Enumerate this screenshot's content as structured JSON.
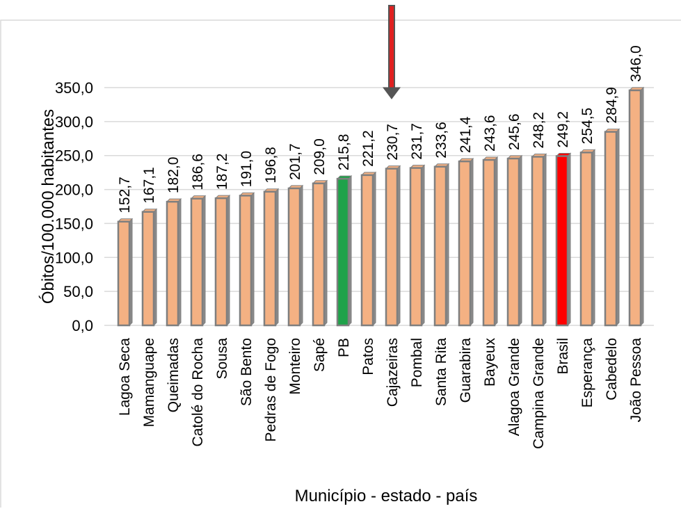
{
  "chart_data": {
    "type": "bar",
    "categories": [
      "Lagoa Seca",
      "Mamanguape",
      "Queimadas",
      "Catolé do Rocha",
      "Sousa",
      "São Bento",
      "Pedras de Fogo",
      "Monteiro",
      "Sapé",
      "PB",
      "Patos",
      "Cajazeiras",
      "Pombal",
      "Santa Rita",
      "Guarabira",
      "Bayeux",
      "Alagoa Grande",
      "Campina Grande",
      "Brasil",
      "Esperança",
      "Cabedelo",
      "João Pessoa"
    ],
    "values": [
      152.7,
      167.1,
      182.0,
      186.6,
      187.2,
      191.0,
      196.8,
      201.7,
      209.0,
      215.8,
      221.2,
      230.7,
      231.7,
      233.6,
      241.4,
      243.6,
      245.6,
      248.2,
      249.2,
      254.5,
      284.9,
      346.0
    ],
    "value_labels": [
      "152,7",
      "167,1",
      "182,0",
      "186,6",
      "187,2",
      "191,0",
      "196,8",
      "201,7",
      "209,0",
      "215,8",
      "221,2",
      "230,7",
      "231,7",
      "233,6",
      "241,4",
      "243,6",
      "245,6",
      "248,2",
      "249,2",
      "254,5",
      "284,9",
      "346,0"
    ],
    "xlabel": "Município - estado - país",
    "ylabel": "Óbitos/100.000 habitantes",
    "ylim": [
      0,
      350
    ],
    "yticks": [
      0,
      50,
      100,
      150,
      200,
      250,
      300,
      350
    ],
    "ytick_labels": [
      "0,0",
      "50,0",
      "100,0",
      "150,0",
      "200,0",
      "250,0",
      "300,0",
      "350,0"
    ],
    "grid": true,
    "legend": "none",
    "colors": {
      "default_bar": "#F4B183",
      "bar_outline": "#7F7F7F",
      "highlight_state": "#1FA24A",
      "highlight_country": "#FF0000",
      "arrow": "#E02020"
    },
    "highlights": {
      "PB": "highlight_state",
      "Brasil": "highlight_country"
    },
    "annotations": [
      {
        "type": "arrow",
        "target": "Cajazeiras",
        "direction": "down"
      }
    ]
  }
}
